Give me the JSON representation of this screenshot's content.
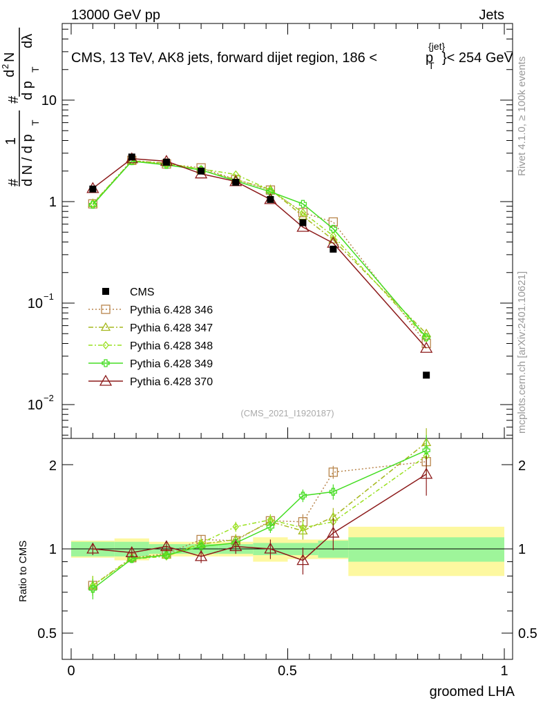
{
  "header": {
    "energy_label": "13000 GeV pp",
    "process_label": "Jets",
    "plot_title": "CMS, 13 TeV, AK8 jets, forward dijet region, 186 <",
    "plot_title_pt": "p",
    "plot_title_jet": "{jet}",
    "plot_title_T": "T",
    "plot_title_end": "}< 254 GeV"
  },
  "side_labels": {
    "rivet": "Rivet 4.1.0, ≥ 100k events",
    "mcplots": "mcplots.cern.ch [arXiv:2401.10621]"
  },
  "reference_label": "(CMS_2021_I1920187)",
  "ylabel_main": {
    "hash1": "#",
    "one": "1",
    "dN": "d N / d p",
    "T1": "T",
    "hash2": "#",
    "dp": "d p",
    "T2": "T",
    "d2N": "d",
    "two": "2",
    "N": "N",
    "dlambda": "dλ"
  },
  "ylabel_ratio": "Ratio to CMS",
  "xlabel": "groomed LHA",
  "main_ticks": {
    "t10": "10",
    "t10_exp": "",
    "t1": "1",
    "t01": "10",
    "t01_exp": "−1",
    "t001": "10",
    "t001_exp": "−2"
  },
  "ratio_ticks": {
    "r2": "2",
    "r1": "1",
    "r05": "0.5",
    "r2b": "2",
    "r1b": "1",
    "r05b": "0.5"
  },
  "x_ticks": {
    "x0": "0",
    "x05": "0.5",
    "x1": "1"
  },
  "chart_data": {
    "type": "line",
    "title": "CMS, 13 TeV, AK8 jets, forward dijet region, 186 < p_T^{jet} < 254 GeV",
    "xlabel": "groomed LHA",
    "ylabel": "1/(dN/dp_T) d²N/(dp_T dλ)",
    "xlim": [
      0,
      1
    ],
    "ylim": [
      0.0045,
      35
    ],
    "yscale": "log",
    "ratio_ylim": [
      0.42,
      2.4
    ],
    "ratio_ylabel": "Ratio to CMS",
    "x_bins": [
      [
        0.0,
        0.1
      ],
      [
        0.1,
        0.18
      ],
      [
        0.18,
        0.26
      ],
      [
        0.26,
        0.34
      ],
      [
        0.34,
        0.42
      ],
      [
        0.42,
        0.5
      ],
      [
        0.5,
        0.57
      ],
      [
        0.57,
        0.64
      ],
      [
        0.64,
        1.0
      ]
    ],
    "x": [
      0.05,
      0.14,
      0.22,
      0.3,
      0.38,
      0.46,
      0.535,
      0.605,
      0.82
    ],
    "data": {
      "name": "CMS",
      "values": [
        1.33,
        2.75,
        2.45,
        2.0,
        1.55,
        1.05,
        0.62,
        0.34,
        0.0195
      ],
      "band_inner": [
        0.06,
        0.06,
        0.04,
        0.04,
        0.04,
        0.05,
        0.05,
        0.07,
        0.1
      ],
      "band_outer": [
        0.07,
        0.09,
        0.06,
        0.06,
        0.06,
        0.1,
        0.08,
        0.08,
        0.2
      ]
    },
    "series": [
      {
        "name": "Pythia 6.428 346",
        "color": "#b8844a",
        "dash": "2,3",
        "marker": "square",
        "values": [
          0.95,
          2.55,
          2.35,
          2.15,
          1.65,
          1.3,
          0.78,
          0.63,
          0.04
        ],
        "ratio": [
          0.74,
          0.93,
          0.96,
          1.08,
          1.07,
          1.26,
          1.25,
          1.88,
          2.05
        ],
        "ratio_err": [
          0.06,
          0.03,
          0.03,
          0.04,
          0.05,
          0.06,
          0.08,
          0.1,
          0.25
        ]
      },
      {
        "name": "Pythia 6.428 347",
        "color": "#a6b81e",
        "dash": "7,3,2,3",
        "marker": "triangle",
        "values": [
          0.96,
          2.52,
          2.4,
          2.05,
          1.65,
          1.32,
          0.72,
          0.42,
          0.05
        ],
        "ratio": [
          0.74,
          0.93,
          0.95,
          1.04,
          1.08,
          1.25,
          1.16,
          1.3,
          2.4
        ],
        "ratio_err": [
          0.06,
          0.03,
          0.03,
          0.04,
          0.05,
          0.06,
          0.08,
          0.1,
          0.3
        ]
      },
      {
        "name": "Pythia 6.428 348",
        "color": "#99e01e",
        "dash": "6,3,2,3",
        "marker": "diamond",
        "values": [
          0.95,
          2.5,
          2.35,
          2.1,
          1.85,
          1.3,
          0.78,
          0.46,
          0.045
        ],
        "ratio": [
          0.74,
          0.92,
          0.94,
          1.05,
          1.2,
          1.27,
          1.19,
          1.25,
          2.15
        ],
        "ratio_err": [
          0.06,
          0.03,
          0.03,
          0.04,
          0.05,
          0.06,
          0.08,
          0.1,
          0.3
        ]
      },
      {
        "name": "Pythia 6.428 349",
        "color": "#44dd22",
        "dash": "",
        "marker": "cross",
        "values": [
          0.93,
          2.5,
          2.3,
          2.05,
          1.6,
          1.25,
          0.95,
          0.54,
          0.046
        ],
        "ratio": [
          0.72,
          0.92,
          0.95,
          1.02,
          1.05,
          1.2,
          1.55,
          1.6,
          2.25
        ],
        "ratio_err": [
          0.06,
          0.03,
          0.03,
          0.04,
          0.05,
          0.06,
          0.08,
          0.1,
          0.3
        ]
      },
      {
        "name": "Pythia 6.428 370",
        "color": "#8c1a1a",
        "dash": "",
        "marker": "triangle-open",
        "values": [
          1.35,
          2.65,
          2.5,
          1.88,
          1.58,
          1.05,
          0.56,
          0.39,
          0.036
        ],
        "ratio": [
          1.0,
          0.97,
          1.02,
          0.94,
          1.02,
          1.0,
          0.91,
          1.14,
          1.85
        ],
        "ratio_err": [
          0.05,
          0.04,
          0.04,
          0.05,
          0.06,
          0.08,
          0.1,
          0.15,
          0.3
        ]
      }
    ]
  }
}
